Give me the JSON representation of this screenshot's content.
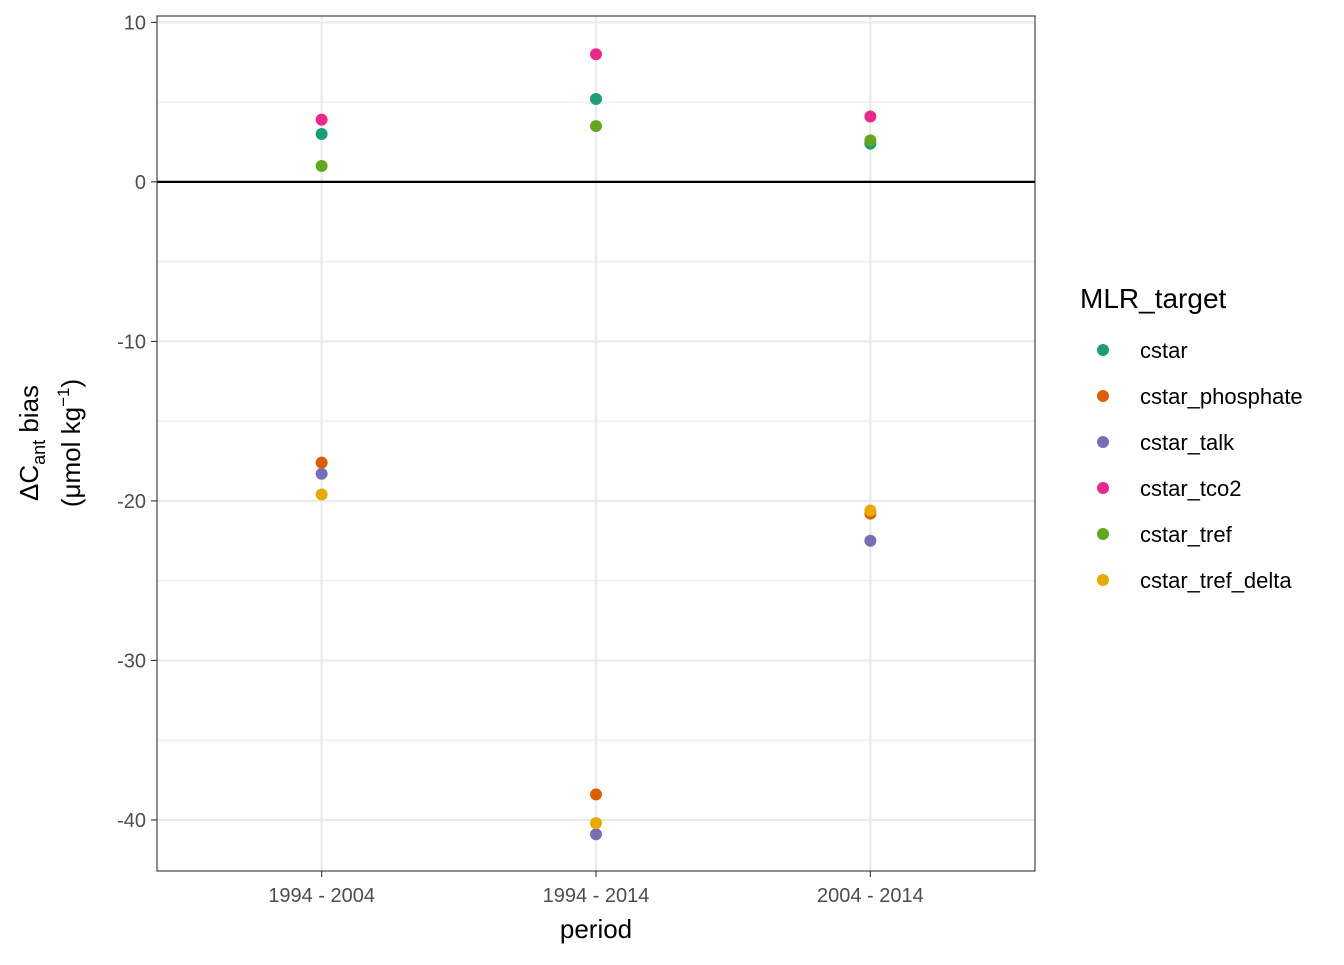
{
  "chart_data": {
    "type": "scatter",
    "xlabel": "period",
    "ylabel": {
      "delta": "Δ",
      "symbol": "C",
      "subscript": "ant",
      "rest": " bias",
      "unit_prefix": "(μmol kg",
      "unit_exp": "−1",
      "unit_suffix": ")"
    },
    "categories": [
      "1994 - 2004",
      "1994 - 2014",
      "2004 - 2014"
    ],
    "ylim": [
      -43.2,
      10.4
    ],
    "yticks": [
      10,
      0,
      -10,
      -20,
      -30,
      -40
    ],
    "ytick_labels": [
      "10",
      "0",
      "-10",
      "-20",
      "-30",
      "-40"
    ],
    "hline": 0,
    "grid": true,
    "legend": {
      "title": "MLR_target",
      "position": "right"
    },
    "series": [
      {
        "name": "cstar",
        "color": "#1B9E77",
        "values": [
          3.0,
          5.2,
          2.4
        ]
      },
      {
        "name": "cstar_phosphate",
        "color": "#D95F02",
        "values": [
          -17.6,
          -38.4,
          -20.8
        ]
      },
      {
        "name": "cstar_talk",
        "color": "#7570B3",
        "values": [
          -18.3,
          -40.9,
          -22.5
        ]
      },
      {
        "name": "cstar_tco2",
        "color": "#E7298A",
        "values": [
          3.9,
          8.0,
          4.1
        ]
      },
      {
        "name": "cstar_tref",
        "color": "#66A61E",
        "values": [
          1.0,
          3.5,
          2.6
        ]
      },
      {
        "name": "cstar_tref_delta",
        "color": "#E6AB02",
        "values": [
          -19.6,
          -40.2,
          -20.6
        ]
      }
    ]
  }
}
